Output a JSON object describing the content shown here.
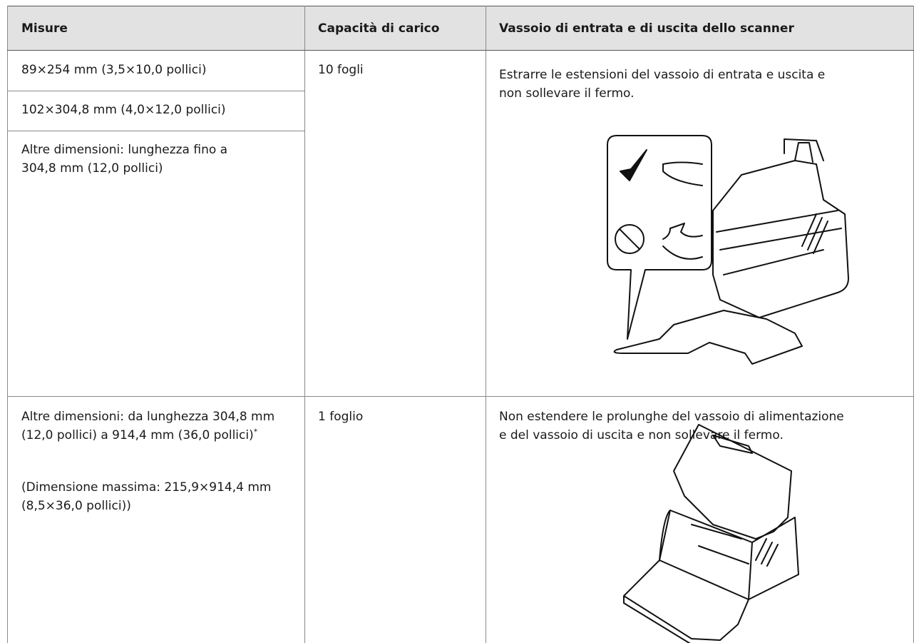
{
  "table": {
    "header": [
      "Misure",
      "Capacità di carico",
      "Vassoio di entrata e di uscita dello scanner"
    ],
    "rows": [
      {
        "sizes": [
          "89×254 mm (3,5×10,0 pollici)",
          "102×304,8 mm (4,0×12,0 pollici)",
          "Altre dimensioni: lunghezza fino a 304,8 mm (12,0 pollici)"
        ],
        "capacity": "10 fogli",
        "instruction": "Estrarre le estensioni del vassoio di entrata e uscita e non sollevare il fermo."
      },
      {
        "sizes": [
          "Altre dimensioni: da lunghezza 304,8 mm (12,0 pollici) a 914,4 mm (36,0 pollici)",
          "(Dimensione massima: 215,9×914,4 mm (8,5×36,0 pollici))"
        ],
        "footnote_mark": "*",
        "capacity": "1 foglio",
        "instruction": "Non estendere le prolunghe del vassoio di alimentazione e del vassoio di uscita e non sollevare il fermo."
      }
    ]
  }
}
